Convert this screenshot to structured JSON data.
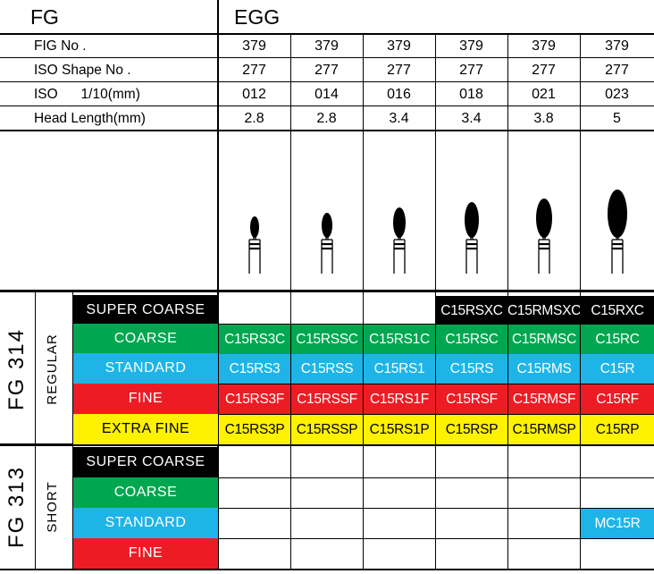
{
  "header": {
    "fg": "FG",
    "shape": "EGG"
  },
  "specs": {
    "rows": [
      {
        "label": "FIG No .",
        "values": [
          "379",
          "379",
          "379",
          "379",
          "379",
          "379"
        ]
      },
      {
        "label": "ISO Shape No .",
        "values": [
          "277",
          "277",
          "277",
          "277",
          "277",
          "277"
        ]
      },
      {
        "label": "ISO      1/10(mm)",
        "values": [
          "012",
          "014",
          "016",
          "018",
          "021",
          "023"
        ]
      },
      {
        "label": "Head Length(mm)",
        "values": [
          "2.8",
          "2.8",
          "3.4",
          "3.4",
          "3.8",
          "5"
        ]
      }
    ]
  },
  "fg314": {
    "title": "FG 314",
    "subtitle": "REGULAR",
    "grades": [
      {
        "label": "SUPER COARSE",
        "bg": "#000000",
        "fg": "#ffffff",
        "codes": [
          "",
          "",
          "",
          "C15RSXC",
          "C15RMSXC",
          "C15RXC"
        ]
      },
      {
        "label": "COARSE",
        "bg": "#00a650",
        "fg": "#ffffff",
        "codes": [
          "C15RS3C",
          "C15RSSC",
          "C15RS1C",
          "C15RSC",
          "C15RMSC",
          "C15RC"
        ]
      },
      {
        "label": "STANDARD",
        "bg": "#1eb4e8",
        "fg": "#ffffff",
        "codes": [
          "C15RS3",
          "C15RSS",
          "C15RS1",
          "C15RS",
          "C15RMS",
          "C15R"
        ]
      },
      {
        "label": "FINE",
        "bg": "#ed1c24",
        "fg": "#ffffff",
        "codes": [
          "C15RS3F",
          "C15RSSF",
          "C15RS1F",
          "C15RSF",
          "C15RMSF",
          "C15RF"
        ]
      },
      {
        "label": "EXTRA FINE",
        "bg": "#fff200",
        "fg": "#000000",
        "codes": [
          "C15RS3P",
          "C15RSSP",
          "C15RS1P",
          "C15RSP",
          "C15RMSP",
          "C15RP"
        ]
      }
    ]
  },
  "fg313": {
    "title": "FG 313",
    "subtitle": "SHORT",
    "grades": [
      {
        "label": "SUPER COARSE",
        "bg": "#000000",
        "fg": "#ffffff",
        "codes": [
          "",
          "",
          "",
          "",
          "",
          ""
        ]
      },
      {
        "label": "COARSE",
        "bg": "#00a650",
        "fg": "#ffffff",
        "codes": [
          "",
          "",
          "",
          "",
          "",
          ""
        ]
      },
      {
        "label": "STANDARD",
        "bg": "#1eb4e8",
        "fg": "#ffffff",
        "codes": [
          "",
          "",
          "",
          "",
          "",
          "MC15R"
        ]
      },
      {
        "label": "FINE",
        "bg": "#ed1c24",
        "fg": "#ffffff",
        "codes": [
          "",
          "",
          "",
          "",
          "",
          ""
        ]
      }
    ]
  },
  "burs": [
    {
      "icon": "egg-bur-icon",
      "head_size": 1
    },
    {
      "icon": "egg-bur-icon",
      "head_size": 2
    },
    {
      "icon": "egg-bur-icon",
      "head_size": 3
    },
    {
      "icon": "egg-bur-icon",
      "head_size": 4
    },
    {
      "icon": "egg-bur-icon",
      "head_size": 5
    },
    {
      "icon": "egg-bur-icon",
      "head_size": 6
    }
  ]
}
